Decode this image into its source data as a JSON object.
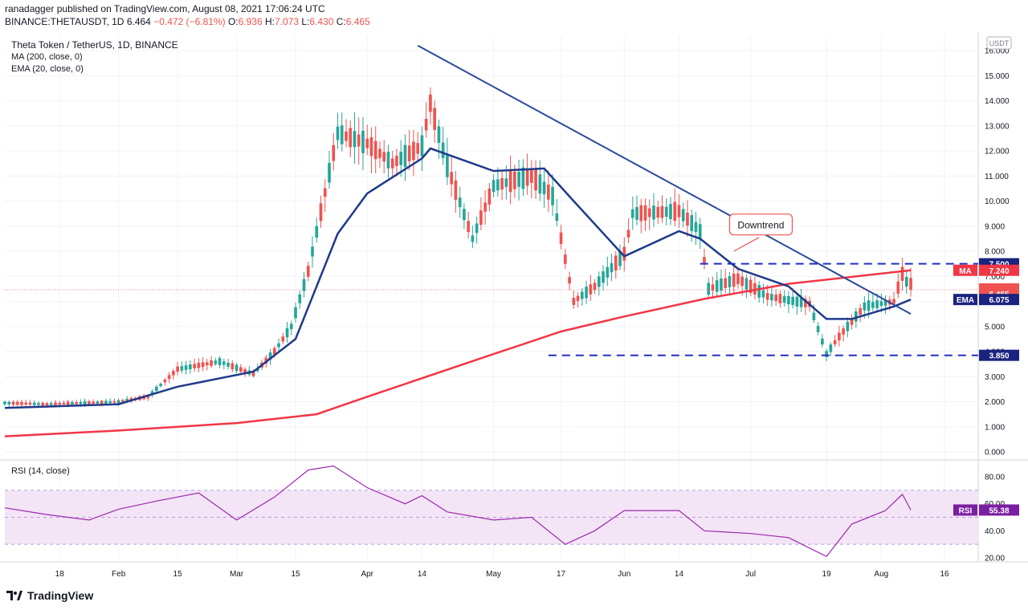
{
  "header": {
    "published": "ranadagger published on TradingView.com, August 08, 2021 17:06:24 UTC",
    "symbol": "BINANCE:THETAUSDT, 1D",
    "last": "6.464",
    "change": "−0.472 (−6.81%)",
    "o_label": "O:",
    "o": "6.936",
    "h_label": "H:",
    "h": "7.073",
    "l_label": "L:",
    "l": "6.430",
    "c_label": "C:",
    "c": "6.465"
  },
  "legend": {
    "title": "Theta Token / TetherUS, 1D, BINANCE",
    "ma": "MA (200, close, 0)",
    "ema": "EMA (20, close, 0)",
    "rsi": "RSI (14, close)"
  },
  "footer": {
    "brand": "TradingView"
  },
  "colors": {
    "up": "#26a69a",
    "down": "#ef5350",
    "ma": "#f23645",
    "ema": "#1e3a8a",
    "trend": "#2a4a9a",
    "level": "#1f2fc7",
    "rsi": "#9c27b0",
    "rsi_band": "#f3e5f5"
  },
  "chart_data": [
    {
      "type": "candlestick",
      "title": "Theta Token / TetherUS, 1D, BINANCE",
      "currency": "USDT",
      "ylim": [
        0,
        16.5
      ],
      "y_ticks": [
        "0.000",
        "1.000",
        "2.000",
        "3.000",
        "4.000",
        "5.000",
        "6.000",
        "7.000",
        "8.000",
        "9.000",
        "10.000",
        "11.000",
        "12.000",
        "13.000",
        "14.000",
        "15.000",
        "16.000"
      ],
      "x_tick_labels": [
        "18",
        "Feb",
        "15",
        "Mar",
        "15",
        "Apr",
        "14",
        "May",
        "17",
        "Jun",
        "14",
        "Jul",
        "19",
        "Aug",
        "16"
      ],
      "x_tick_dates": [
        "2021-01-18",
        "2021-02-01",
        "2021-02-15",
        "2021-03-01",
        "2021-03-15",
        "2021-04-01",
        "2021-04-14",
        "2021-05-01",
        "2021-05-17",
        "2021-06-01",
        "2021-06-14",
        "2021-07-01",
        "2021-07-19",
        "2021-08-01",
        "2021-08-16"
      ],
      "date_range": [
        "2021-01-05",
        "2021-08-24"
      ],
      "last_date": "2021-08-08",
      "series_keypoints": {
        "close": [
          [
            "2021-01-05",
            1.95
          ],
          [
            "2021-01-15",
            1.9
          ],
          [
            "2021-02-01",
            2.0
          ],
          [
            "2021-02-08",
            2.2
          ],
          [
            "2021-02-15",
            3.3
          ],
          [
            "2021-02-25",
            3.6
          ],
          [
            "2021-03-05",
            3.1
          ],
          [
            "2021-03-10",
            4.0
          ],
          [
            "2021-03-14",
            5.0
          ],
          [
            "2021-03-18",
            7.2
          ],
          [
            "2021-03-25",
            12.7
          ],
          [
            "2021-04-01",
            12.3
          ],
          [
            "2021-04-07",
            11.5
          ],
          [
            "2021-04-14",
            12.2
          ],
          [
            "2021-04-16",
            13.9
          ],
          [
            "2021-04-20",
            11.4
          ],
          [
            "2021-04-26",
            8.5
          ],
          [
            "2021-05-01",
            10.6
          ],
          [
            "2021-05-10",
            11.0
          ],
          [
            "2021-05-15",
            10.2
          ],
          [
            "2021-05-20",
            6.0
          ],
          [
            "2021-05-25",
            6.6
          ],
          [
            "2021-06-01",
            7.9
          ],
          [
            "2021-06-03",
            9.5
          ],
          [
            "2021-06-14",
            9.6
          ],
          [
            "2021-06-19",
            8.8
          ],
          [
            "2021-06-21",
            6.5
          ],
          [
            "2021-06-28",
            6.9
          ],
          [
            "2021-07-05",
            6.2
          ],
          [
            "2021-07-15",
            5.9
          ],
          [
            "2021-07-19",
            3.9
          ],
          [
            "2021-07-22",
            4.6
          ],
          [
            "2021-07-28",
            5.8
          ],
          [
            "2021-08-04",
            6.0
          ],
          [
            "2021-08-06",
            7.1
          ],
          [
            "2021-08-08",
            6.465
          ]
        ]
      },
      "indicators": [
        {
          "name": "MA (200, close, 0)",
          "keypoints": [
            [
              "2021-01-05",
              0.62
            ],
            [
              "2021-02-01",
              0.85
            ],
            [
              "2021-03-01",
              1.15
            ],
            [
              "2021-03-20",
              1.5
            ],
            [
              "2021-04-01",
              2.2
            ],
            [
              "2021-05-01",
              3.9
            ],
            [
              "2021-05-17",
              4.8
            ],
            [
              "2021-06-01",
              5.4
            ],
            [
              "2021-06-20",
              6.1
            ],
            [
              "2021-07-10",
              6.7
            ],
            [
              "2021-08-08",
              7.24
            ]
          ],
          "last": "7.240",
          "label": "MA"
        },
        {
          "name": "EMA (20, close, 0)",
          "keypoints": [
            [
              "2021-01-05",
              1.75
            ],
            [
              "2021-02-01",
              1.9
            ],
            [
              "2021-02-15",
              2.6
            ],
            [
              "2021-03-05",
              3.2
            ],
            [
              "2021-03-15",
              4.5
            ],
            [
              "2021-03-25",
              8.7
            ],
            [
              "2021-04-01",
              10.3
            ],
            [
              "2021-04-14",
              11.7
            ],
            [
              "2021-04-16",
              12.1
            ],
            [
              "2021-05-01",
              11.2
            ],
            [
              "2021-05-13",
              11.3
            ],
            [
              "2021-05-20",
              10.0
            ],
            [
              "2021-06-01",
              7.8
            ],
            [
              "2021-06-14",
              8.8
            ],
            [
              "2021-06-19",
              8.5
            ],
            [
              "2021-06-28",
              7.3
            ],
            [
              "2021-07-10",
              6.6
            ],
            [
              "2021-07-19",
              5.3
            ],
            [
              "2021-07-25",
              5.3
            ],
            [
              "2021-08-04",
              5.8
            ],
            [
              "2021-08-08",
              6.075
            ]
          ],
          "last": "6.075",
          "label": "EMA"
        }
      ],
      "annotations": {
        "trendline": {
          "from": [
            "2021-04-13",
            16.2
          ],
          "to": [
            "2021-08-08",
            5.5
          ],
          "label": "Downtrend"
        },
        "levels": [
          {
            "value": 7.5,
            "label": "7.500",
            "from": "2021-06-19",
            "to": "2021-08-12"
          },
          {
            "value": 3.85,
            "label": "3.850",
            "from": "2021-05-14",
            "to": "2021-08-12"
          }
        ],
        "current_price": {
          "value": "6.465",
          "countdown": "06:53:36"
        }
      }
    },
    {
      "type": "line",
      "title": "RSI (14, close)",
      "ylim": [
        15,
        95
      ],
      "y_ticks": [
        "20.00",
        "40.00",
        "60.00",
        "80.00"
      ],
      "band": [
        30,
        70
      ],
      "last": "55.38",
      "label": "RSI",
      "keypoints": [
        [
          "2021-01-05",
          57
        ],
        [
          "2021-01-15",
          52
        ],
        [
          "2021-01-25",
          48
        ],
        [
          "2021-02-01",
          56
        ],
        [
          "2021-02-10",
          62
        ],
        [
          "2021-02-20",
          68
        ],
        [
          "2021-03-01",
          48
        ],
        [
          "2021-03-10",
          65
        ],
        [
          "2021-03-18",
          85
        ],
        [
          "2021-03-24",
          88
        ],
        [
          "2021-04-01",
          72
        ],
        [
          "2021-04-10",
          60
        ],
        [
          "2021-04-14",
          66
        ],
        [
          "2021-04-20",
          54
        ],
        [
          "2021-05-01",
          48
        ],
        [
          "2021-05-10",
          50
        ],
        [
          "2021-05-18",
          30
        ],
        [
          "2021-05-25",
          40
        ],
        [
          "2021-06-01",
          55
        ],
        [
          "2021-06-14",
          55
        ],
        [
          "2021-06-20",
          40
        ],
        [
          "2021-07-01",
          38
        ],
        [
          "2021-07-10",
          35
        ],
        [
          "2021-07-19",
          21
        ],
        [
          "2021-07-25",
          45
        ],
        [
          "2021-08-02",
          55
        ],
        [
          "2021-08-06",
          67
        ],
        [
          "2021-08-08",
          55.38
        ]
      ]
    }
  ]
}
